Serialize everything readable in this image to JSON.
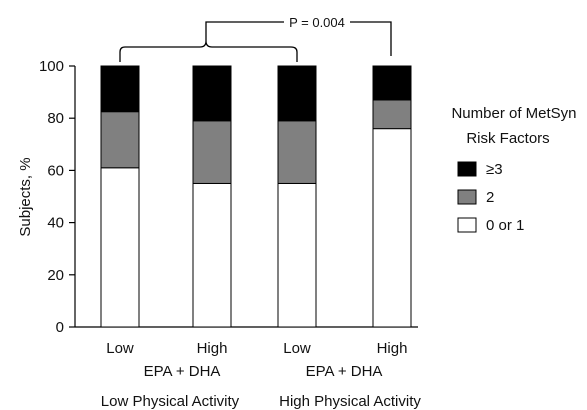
{
  "chart_data": {
    "type": "bar",
    "stacked": true,
    "categories": [
      "Low",
      "High",
      "Low",
      "High"
    ],
    "group_labels": [
      {
        "factor": "EPA + DHA",
        "group": "Low Physical Activity"
      },
      {
        "factor": "EPA + DHA",
        "group": "High Physical Activity"
      }
    ],
    "series": [
      {
        "name": "0 or 1",
        "values": [
          61,
          55,
          55,
          76
        ],
        "color": "#ffffff"
      },
      {
        "name": "2",
        "values": [
          21.5,
          24,
          24,
          11
        ],
        "color": "#808080"
      },
      {
        "name": "≥3",
        "values": [
          17.5,
          21,
          21,
          13
        ],
        "color": "#000000"
      }
    ],
    "ylabel": "Subjects, %",
    "ylim": [
      0,
      100
    ],
    "yticks": [
      0,
      20,
      40,
      60,
      80,
      100
    ],
    "legend": {
      "title_line1": "Number of MetSyn",
      "title_line2": "Risk Factors",
      "placement": "right"
    },
    "annotation": {
      "text": "P = 0.004"
    },
    "grid": false
  }
}
